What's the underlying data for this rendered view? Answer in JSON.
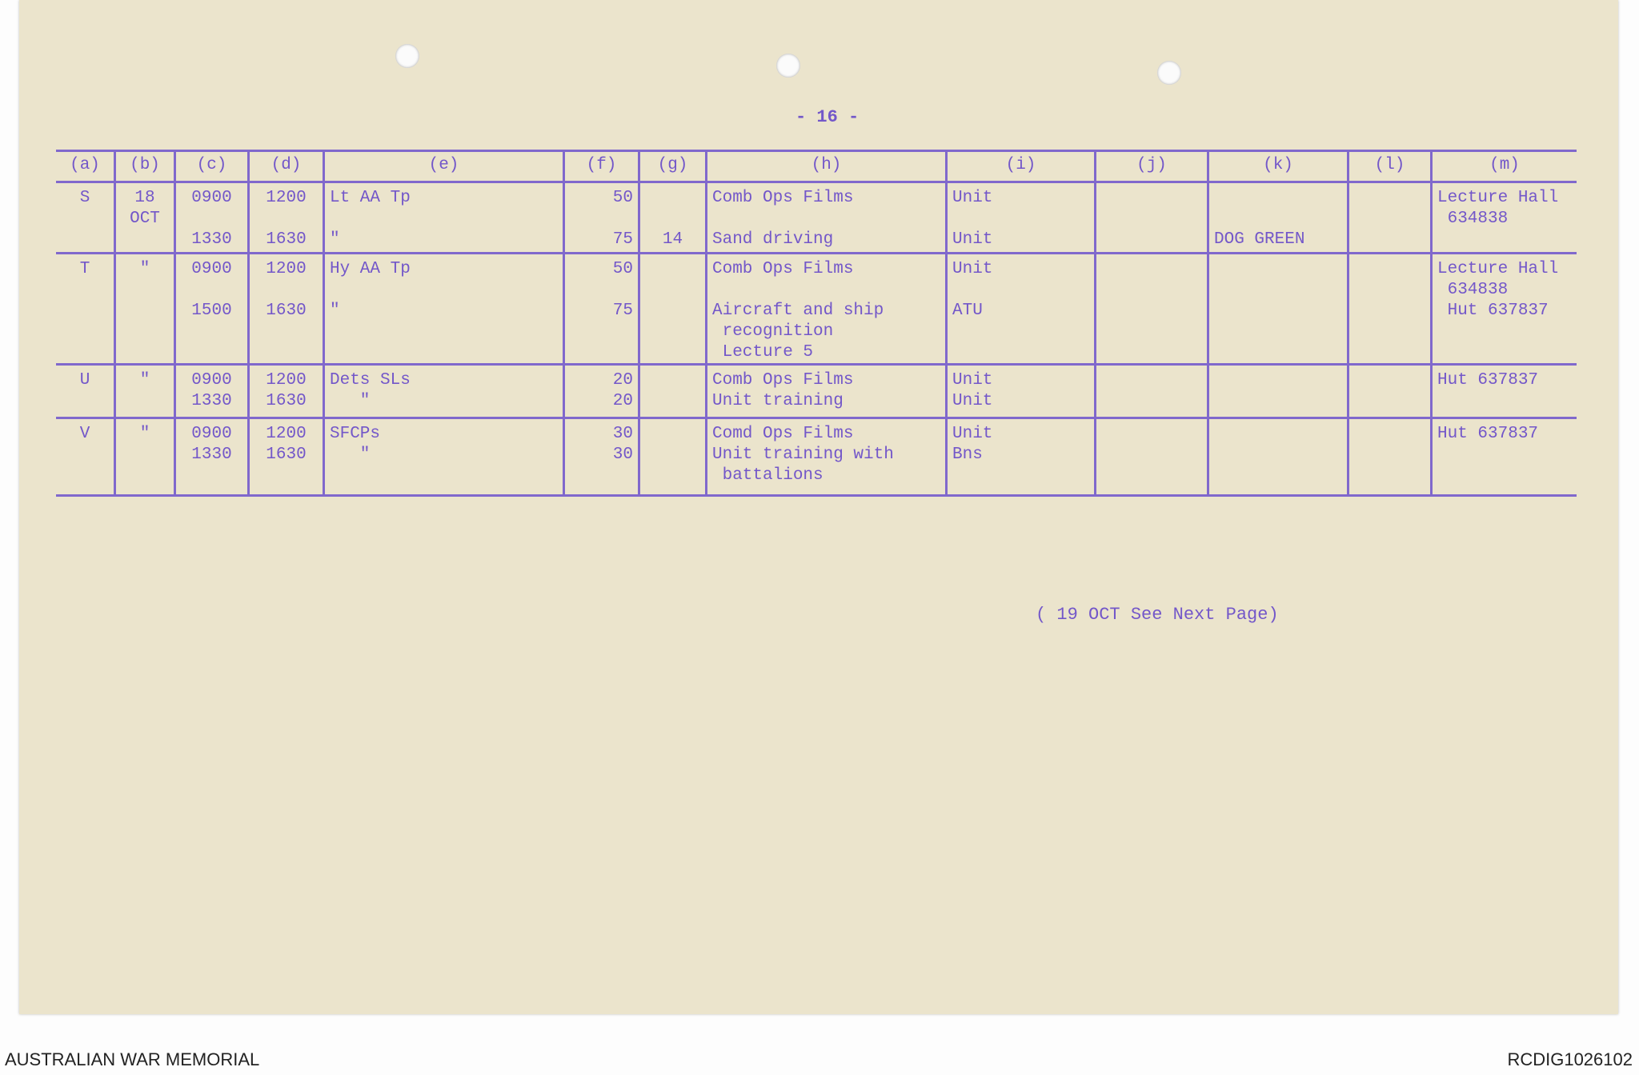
{
  "page_number": "- 16 -",
  "table": {
    "headers": [
      "(a)",
      "(b)",
      "(c)",
      "(d)",
      "(e)",
      "(f)",
      "(g)",
      "(h)",
      "(i)",
      "(j)",
      "(k)",
      "(l)",
      "(m)"
    ],
    "rows": [
      {
        "cells": [
          [
            "S"
          ],
          [
            "18",
            "OCT"
          ],
          [
            "0900",
            "",
            "1330"
          ],
          [
            "1200",
            "",
            "1630"
          ],
          [
            "Lt AA Tp",
            "",
            "\""
          ],
          [
            "50",
            "",
            "75"
          ],
          [
            "",
            "",
            "14"
          ],
          [
            "Comb Ops Films",
            "",
            "Sand driving"
          ],
          [
            "Unit",
            "",
            "Unit"
          ],
          [],
          [
            "",
            "",
            "DOG GREEN"
          ],
          [],
          [
            "Lecture Hall",
            " 634838"
          ]
        ]
      },
      {
        "cells": [
          [
            "T"
          ],
          [
            "\""
          ],
          [
            "0900",
            "",
            "1500"
          ],
          [
            "1200",
            "",
            "1630"
          ],
          [
            "Hy AA Tp",
            "",
            "\""
          ],
          [
            "50",
            "",
            "75"
          ],
          [],
          [
            "Comb Ops Films",
            "",
            "Aircraft and ship",
            " recognition",
            " Lecture 5"
          ],
          [
            "Unit",
            "",
            "ATU"
          ],
          [],
          [],
          [],
          [
            "Lecture Hall",
            " 634838",
            " Hut 637837"
          ]
        ]
      },
      {
        "cells": [
          [
            "U"
          ],
          [
            "\""
          ],
          [
            "0900",
            "1330"
          ],
          [
            "1200",
            "1630"
          ],
          [
            "Dets SLs",
            "   \""
          ],
          [
            "20",
            "20"
          ],
          [],
          [
            "Comb Ops Films",
            "Unit training"
          ],
          [
            "Unit",
            "Unit"
          ],
          [],
          [],
          [],
          [
            "Hut 637837"
          ]
        ]
      },
      {
        "cells": [
          [
            "V"
          ],
          [
            "\""
          ],
          [
            "0900",
            "1330"
          ],
          [
            "1200",
            "1630"
          ],
          [
            "SFCPs",
            "   \""
          ],
          [
            "30",
            "30"
          ],
          [],
          [
            "Comd Ops Films",
            "Unit training with",
            " battalions"
          ],
          [
            "Unit",
            "Bns"
          ],
          [],
          [],
          [],
          [
            "Hut 637837"
          ]
        ]
      }
    ]
  },
  "note": "( 19 OCT See Next Page)",
  "footer": {
    "left": "AUSTRALIAN WAR MEMORIAL",
    "right": "RCDIG1026102"
  },
  "colors": {
    "ink": "#7357c9",
    "paper": "#ebe4cc"
  }
}
